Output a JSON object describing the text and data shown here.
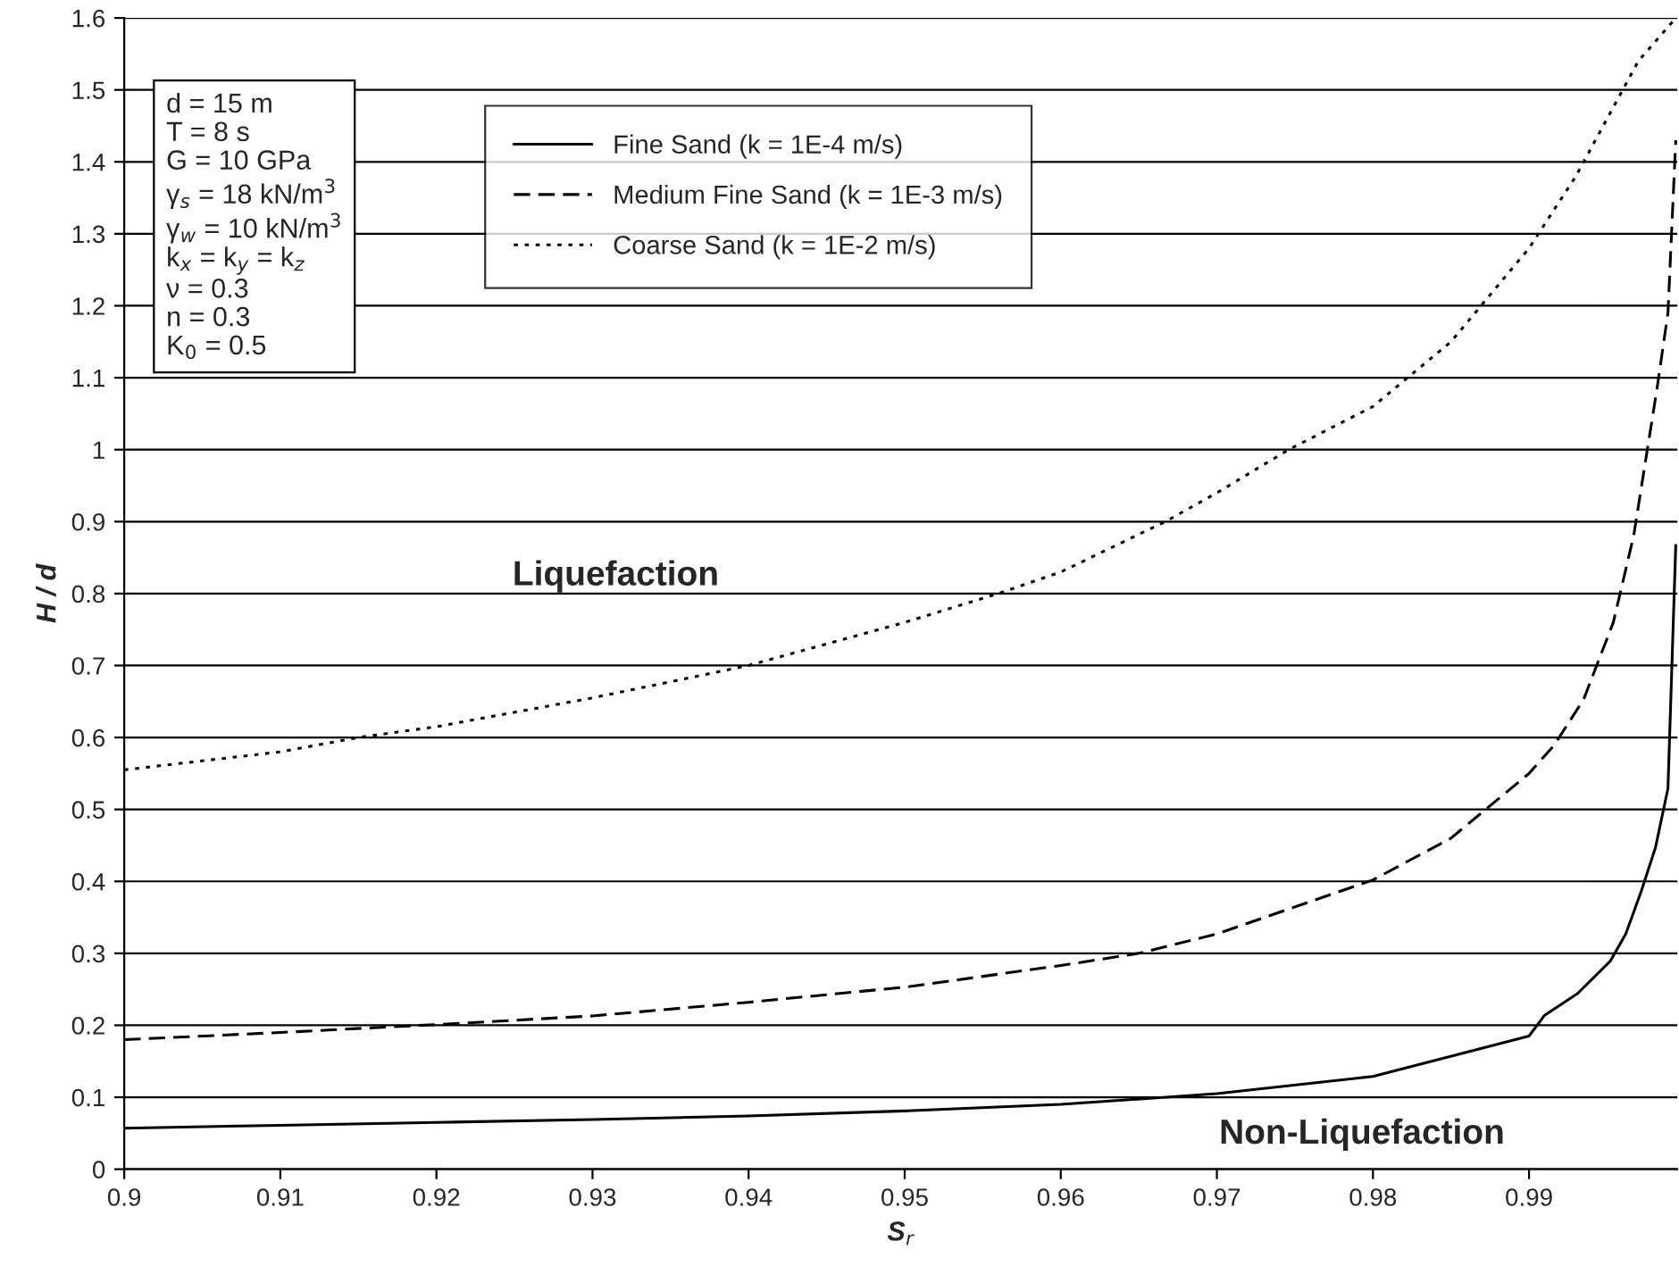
{
  "chart_data": {
    "type": "line",
    "xlabel": "S$_{r}$",
    "ylabel": "H / d",
    "xlim": [
      0.9,
      0.9995
    ],
    "xticks": [
      0.9,
      0.91,
      0.92,
      0.93,
      0.94,
      0.95,
      0.96,
      0.97,
      0.98,
      0.99
    ],
    "ylim": [
      0,
      1.6
    ],
    "yticks": [
      0,
      0.1,
      0.2,
      0.3,
      0.4,
      0.5,
      0.6,
      0.7,
      0.8,
      0.9,
      1,
      1.1,
      1.2,
      1.3,
      1.4,
      1.5,
      1.6
    ],
    "grid": "y",
    "legend": "top",
    "marker": "none",
    "series": [
      {
        "name": "Fine Sand (k = 1E-4 m/s)",
        "color": "#000000",
        "line_style": "solid",
        "x": [
          0.9,
          0.91,
          0.92,
          0.93,
          0.94,
          0.95,
          0.96,
          0.97,
          0.98,
          0.99,
          0.991,
          0.9931,
          0.9952,
          0.9962,
          0.9972,
          0.9981,
          0.9989,
          0.9994
        ],
        "values": [
          0.057,
          0.061,
          0.065,
          0.069,
          0.074,
          0.081,
          0.09,
          0.105,
          0.129,
          0.185,
          0.214,
          0.244,
          0.289,
          0.327,
          0.387,
          0.447,
          0.529,
          0.867
        ]
      },
      {
        "name": "Medium Fine Sand (k = 1E-3 m/s)",
        "color": "#000000",
        "line_style": "dashed",
        "x": [
          0.9,
          0.91,
          0.92,
          0.93,
          0.94,
          0.95,
          0.96,
          0.965,
          0.97,
          0.98,
          0.985,
          0.99,
          0.9916,
          0.9935,
          0.9954,
          0.9967,
          0.9982,
          0.9989,
          0.9994
        ],
        "values": [
          0.18,
          0.19,
          0.201,
          0.213,
          0.232,
          0.253,
          0.283,
          0.3,
          0.327,
          0.402,
          0.46,
          0.55,
          0.589,
          0.653,
          0.76,
          0.88,
          1.085,
          1.19,
          1.43
        ]
      },
      {
        "name": "Coarse Sand (k = 1E-2 m/s)",
        "color": "#000000",
        "line_style": "dotted",
        "x": [
          0.9,
          0.91,
          0.915,
          0.92,
          0.93,
          0.94,
          0.95,
          0.956,
          0.96,
          0.9667,
          0.97,
          0.9746,
          0.98,
          0.985,
          0.99,
          0.993,
          0.995,
          0.997,
          0.9994
        ],
        "values": [
          0.555,
          0.58,
          0.6,
          0.615,
          0.655,
          0.7,
          0.76,
          0.8,
          0.83,
          0.9,
          0.94,
          1.0,
          1.06,
          1.15,
          1.28,
          1.38,
          1.46,
          1.54,
          1.6
        ]
      }
    ],
    "annotations": [
      "d = 15 m\nT = 8 s\nG = 10 GPa\nγ$_{s}$ = 18 kN/m$^{3}$\nγ$_{w}$ = 10 kN/m$^{3}$\nk$_{x}$ = k$_{y}$ = k$_{z}$\nν = 0.3\nn = 0.3\nK$_{0}$ = 0.5",
      "Liquefaction",
      "Non-Liquefaction"
    ]
  }
}
